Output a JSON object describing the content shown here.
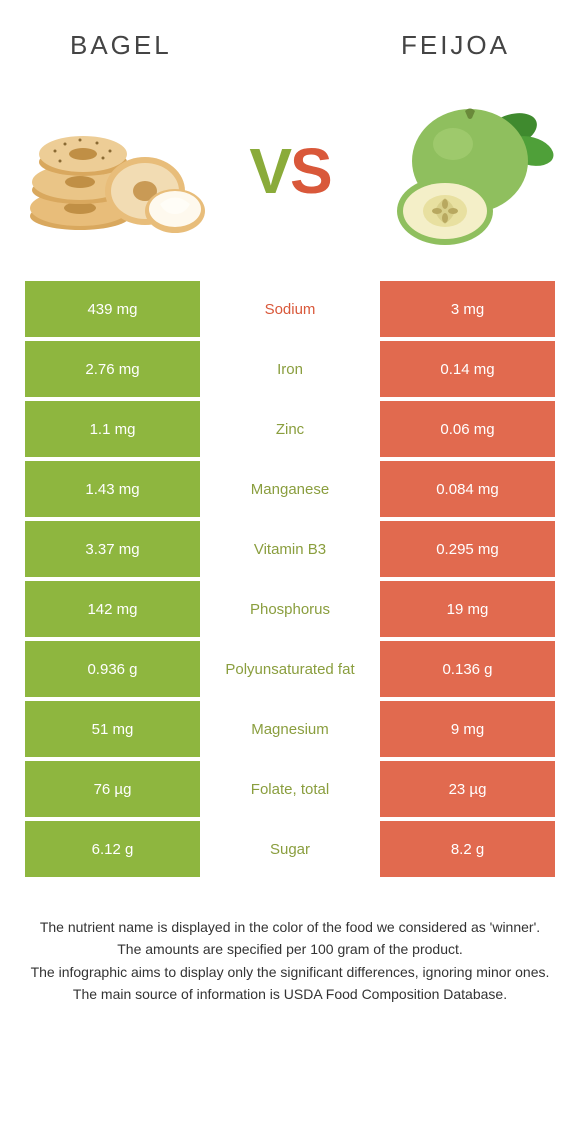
{
  "colors": {
    "bagel": "#8eb63f",
    "feijoa": "#e16a4f",
    "bagel_text": "#8a9e3e",
    "feijoa_text": "#d9583a",
    "white": "#ffffff",
    "footer_text": "#333333"
  },
  "header": {
    "left": "BAGEL",
    "right": "FEIJOA"
  },
  "vs": {
    "v": "V",
    "s": "S"
  },
  "rows": [
    {
      "left": "439 mg",
      "label": "Sodium",
      "right": "3 mg",
      "winner": "feijoa"
    },
    {
      "left": "2.76 mg",
      "label": "Iron",
      "right": "0.14 mg",
      "winner": "bagel"
    },
    {
      "left": "1.1 mg",
      "label": "Zinc",
      "right": "0.06 mg",
      "winner": "bagel"
    },
    {
      "left": "1.43 mg",
      "label": "Manganese",
      "right": "0.084 mg",
      "winner": "bagel"
    },
    {
      "left": "3.37 mg",
      "label": "Vitamin B3",
      "right": "0.295 mg",
      "winner": "bagel"
    },
    {
      "left": "142 mg",
      "label": "Phosphorus",
      "right": "19 mg",
      "winner": "bagel"
    },
    {
      "left": "0.936 g",
      "label": "Polyunsaturated fat",
      "right": "0.136 g",
      "winner": "bagel"
    },
    {
      "left": "51 mg",
      "label": "Magnesium",
      "right": "9 mg",
      "winner": "bagel"
    },
    {
      "left": "76 µg",
      "label": "Folate, total",
      "right": "23 µg",
      "winner": "bagel"
    },
    {
      "left": "6.12 g",
      "label": "Sugar",
      "right": "8.2 g",
      "winner": "bagel"
    }
  ],
  "footer": {
    "l1": "The nutrient name is displayed in the color of the food we considered as 'winner'.",
    "l2": "The amounts are specified per 100 gram of the product.",
    "l3": "The infographic aims to display only the significant differences, ignoring minor ones.",
    "l4": "The main source of information is USDA Food Composition Database."
  }
}
